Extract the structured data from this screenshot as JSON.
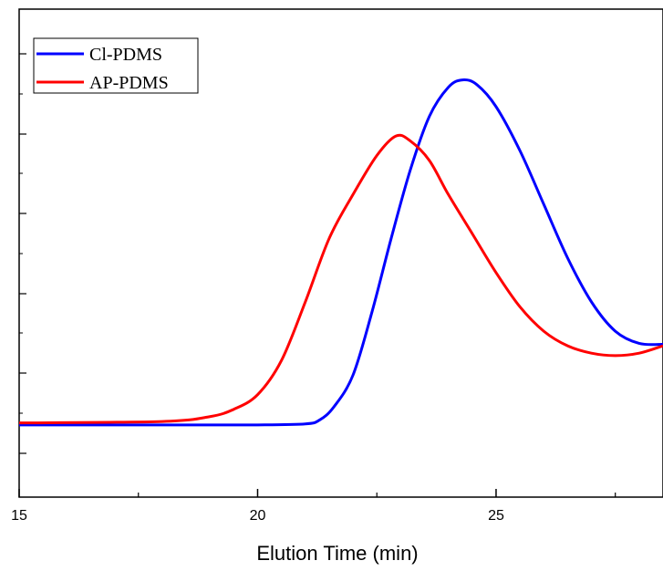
{
  "chart_data": {
    "type": "line",
    "title": "",
    "xlabel": "Elution Time (min)",
    "ylabel": "",
    "xlim": [
      15,
      28.5
    ],
    "ylim": [
      0,
      1
    ],
    "x_ticks": [
      15,
      20,
      25
    ],
    "x_minor_ticks": [
      17.5,
      22.5,
      27.5
    ],
    "y_ticks_labeled": false,
    "grid": false,
    "legend_position": "top-left",
    "series": [
      {
        "name": "Cl-PDMS",
        "color": "#0000ff",
        "points": [
          [
            15,
            0.148
          ],
          [
            18,
            0.148
          ],
          [
            20,
            0.148
          ],
          [
            21,
            0.15
          ],
          [
            21.3,
            0.158
          ],
          [
            21.6,
            0.185
          ],
          [
            22,
            0.25
          ],
          [
            22.4,
            0.38
          ],
          [
            22.8,
            0.53
          ],
          [
            23.2,
            0.67
          ],
          [
            23.6,
            0.78
          ],
          [
            24,
            0.84
          ],
          [
            24.3,
            0.855
          ],
          [
            24.6,
            0.845
          ],
          [
            25,
            0.8
          ],
          [
            25.5,
            0.71
          ],
          [
            26,
            0.6
          ],
          [
            26.5,
            0.49
          ],
          [
            27,
            0.4
          ],
          [
            27.5,
            0.34
          ],
          [
            28,
            0.315
          ],
          [
            28.5,
            0.313
          ]
        ]
      },
      {
        "name": "AP-PDMS",
        "color": "#ff0000",
        "points": [
          [
            15,
            0.152
          ],
          [
            18,
            0.155
          ],
          [
            19,
            0.165
          ],
          [
            19.5,
            0.18
          ],
          [
            20,
            0.21
          ],
          [
            20.5,
            0.28
          ],
          [
            21,
            0.4
          ],
          [
            21.5,
            0.53
          ],
          [
            22,
            0.62
          ],
          [
            22.5,
            0.7
          ],
          [
            22.9,
            0.74
          ],
          [
            23.2,
            0.73
          ],
          [
            23.6,
            0.69
          ],
          [
            24,
            0.62
          ],
          [
            24.5,
            0.54
          ],
          [
            25,
            0.46
          ],
          [
            25.5,
            0.39
          ],
          [
            26,
            0.34
          ],
          [
            26.5,
            0.31
          ],
          [
            27,
            0.295
          ],
          [
            27.5,
            0.29
          ],
          [
            28,
            0.295
          ],
          [
            28.5,
            0.31
          ]
        ]
      }
    ]
  }
}
